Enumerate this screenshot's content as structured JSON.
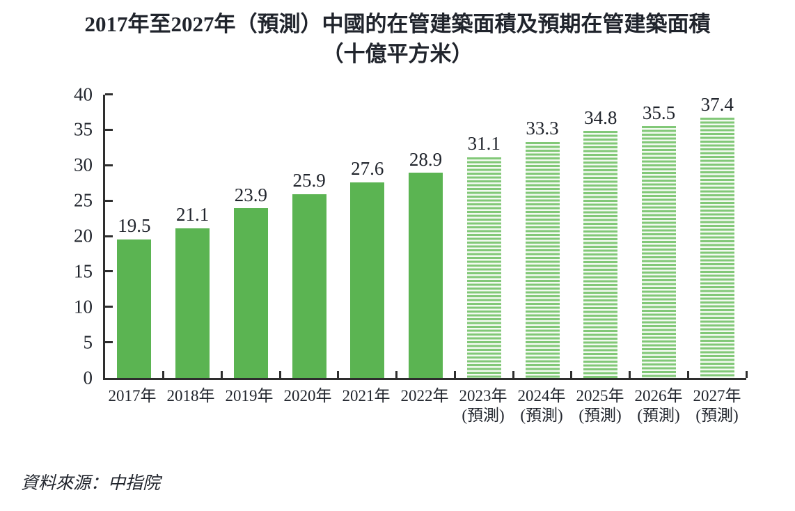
{
  "title": {
    "line1": "2017年至2027年（預測）中國的在管建築面積及預期在管建築面積",
    "line2": "（十億平方米）"
  },
  "source_note": "資料來源：中指院",
  "colors": {
    "bar_solid": "#5bb452",
    "bar_stripe": "#82c878",
    "bar_stripe_gap": "#f3faf1",
    "axis": "#2e2e2e",
    "text": "#20242c"
  },
  "chart_data": {
    "type": "bar",
    "title": "2017年至2027年（預測）中國的在管建築面積及預期在管建築面積（十億平方米）",
    "categories": [
      "2017年",
      "2018年",
      "2019年",
      "2020年",
      "2021年",
      "2022年",
      "2023年",
      "2024年",
      "2025年",
      "2026年",
      "2027年"
    ],
    "category_notes": [
      "",
      "",
      "",
      "",
      "",
      "",
      "(預測)",
      "(預測)",
      "(預測)",
      "(預測)",
      "(預測)"
    ],
    "values": [
      19.5,
      21.1,
      23.9,
      25.9,
      27.6,
      28.9,
      31.1,
      33.3,
      34.8,
      35.5,
      37.4
    ],
    "forecast": [
      false,
      false,
      false,
      false,
      false,
      false,
      true,
      true,
      true,
      true,
      true
    ],
    "ylim": [
      0,
      40
    ],
    "ytick_step": 5,
    "grid": false,
    "legend": "none",
    "xlabel": "",
    "ylabel": "",
    "forecast_bar_style": "horizontal-stripes"
  }
}
